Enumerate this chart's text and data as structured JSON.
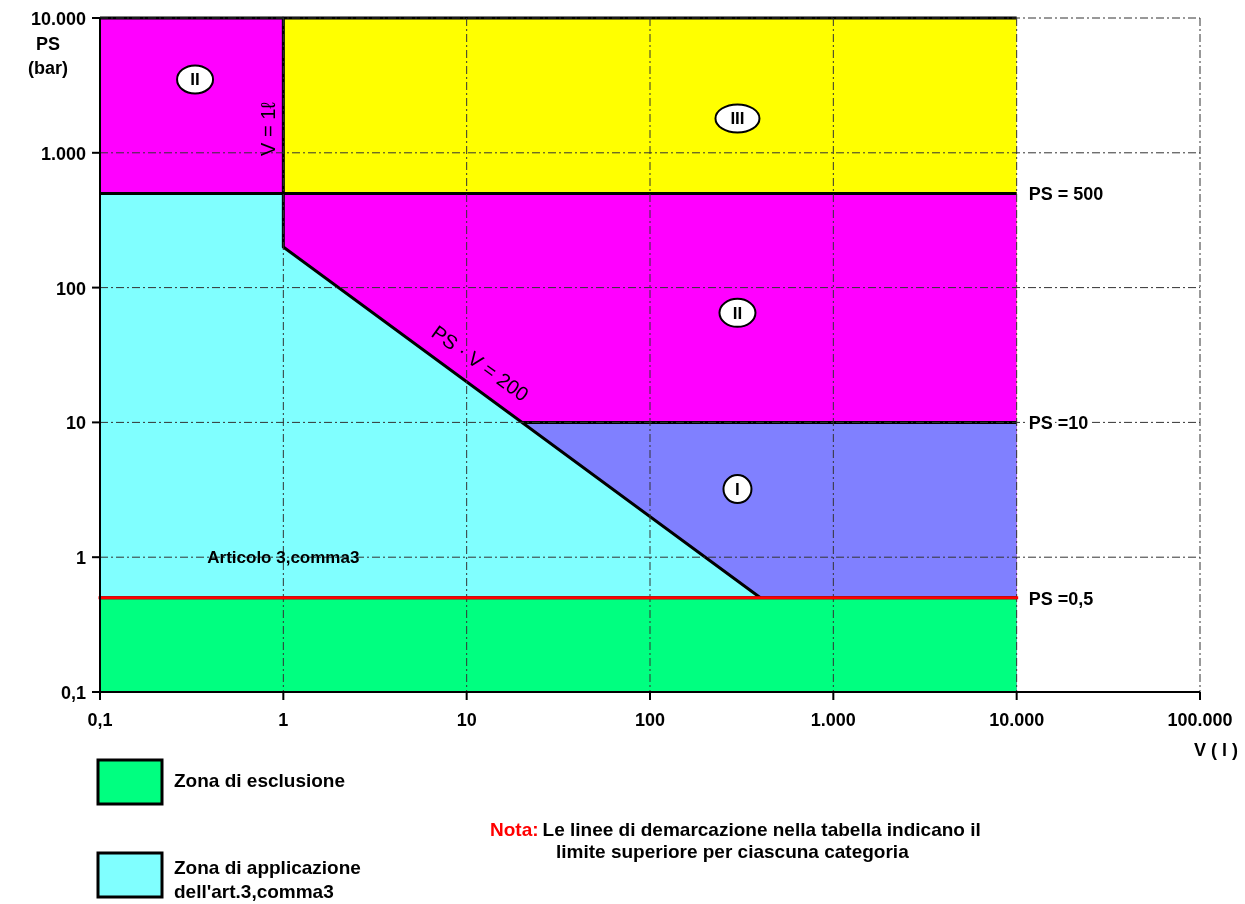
{
  "chart_data": {
    "type": "area",
    "xlabel": "V ( l )",
    "ylabel": "PS (bar)",
    "log": "xy",
    "xlim": [
      0.1,
      100000
    ],
    "ylim": [
      0.1,
      10000
    ],
    "xticks": [
      {
        "value": 0.1,
        "label": "0,1"
      },
      1,
      10,
      100,
      {
        "value": 1000,
        "label": "1.000"
      },
      {
        "value": 10000,
        "label": "10.000"
      },
      {
        "value": 100000,
        "label": "100.000"
      }
    ],
    "yticks": [
      {
        "value": 0.1,
        "label": "0,1"
      },
      1,
      10,
      100,
      {
        "value": 1000,
        "label": "1.000"
      },
      {
        "value": 10000,
        "label": "10.000"
      }
    ],
    "grid": true,
    "legend": "bottom left",
    "series": [
      {
        "color": "#ff00ff",
        "x": [
          0.1,
          1
        ],
        "values": [
          10000,
          10000
        ]
      },
      {
        "color": "#ffff00",
        "x": [
          1,
          1,
          10000
        ],
        "values": [
          500,
          10000,
          10000
        ]
      },
      {
        "color": "#ff00ff",
        "x": [
          1,
          10000
        ],
        "values": [
          500,
          500
        ]
      },
      {
        "color": "#8080ff",
        "x": [
          20,
          10000
        ],
        "values": [
          10,
          10
        ]
      },
      {
        "name": "Zona di applicazione dell'art.3,comma3",
        "color": "#80ffff",
        "x": [
          0.1,
          1,
          1,
          400
        ],
        "values": [
          500,
          500,
          200,
          0.5
        ]
      },
      {
        "name": "Zona di esclusione",
        "color": "#00ff80",
        "x": [
          0.1,
          10000
        ],
        "values": [
          0.5,
          0.5
        ]
      },
      {
        "type": "line",
        "color": "#ff0000",
        "x": [
          0.1,
          10000
        ],
        "values": [
          0.5,
          0.5
        ]
      }
    ],
    "annotations": [
      {
        "text": "PS = 500",
        "x": 10000,
        "y": 500
      },
      {
        "text": "PS =10",
        "x": 10000,
        "y": 10
      },
      {
        "text": "PS =0,5",
        "x": 10000,
        "y": 0.5
      },
      {
        "text": "V = 1ℓ",
        "x": 1,
        "y": 1500
      },
      {
        "text": "PS · V = 200",
        "x": 10,
        "y": 20
      },
      {
        "text": "II",
        "x": 0.33,
        "y": 3500
      },
      {
        "text": "III",
        "x": 300,
        "y": 1800
      },
      {
        "text": "II",
        "x": 300,
        "y": 65
      },
      {
        "text": "I",
        "x": 300,
        "y": 3.2
      },
      {
        "text": "Articolo 3,comma3",
        "x": 1,
        "y": 1
      },
      "Nota: Le linee di demarcazione nella tabella indicano il limite superiore per ciascuna categoria"
    ]
  }
}
